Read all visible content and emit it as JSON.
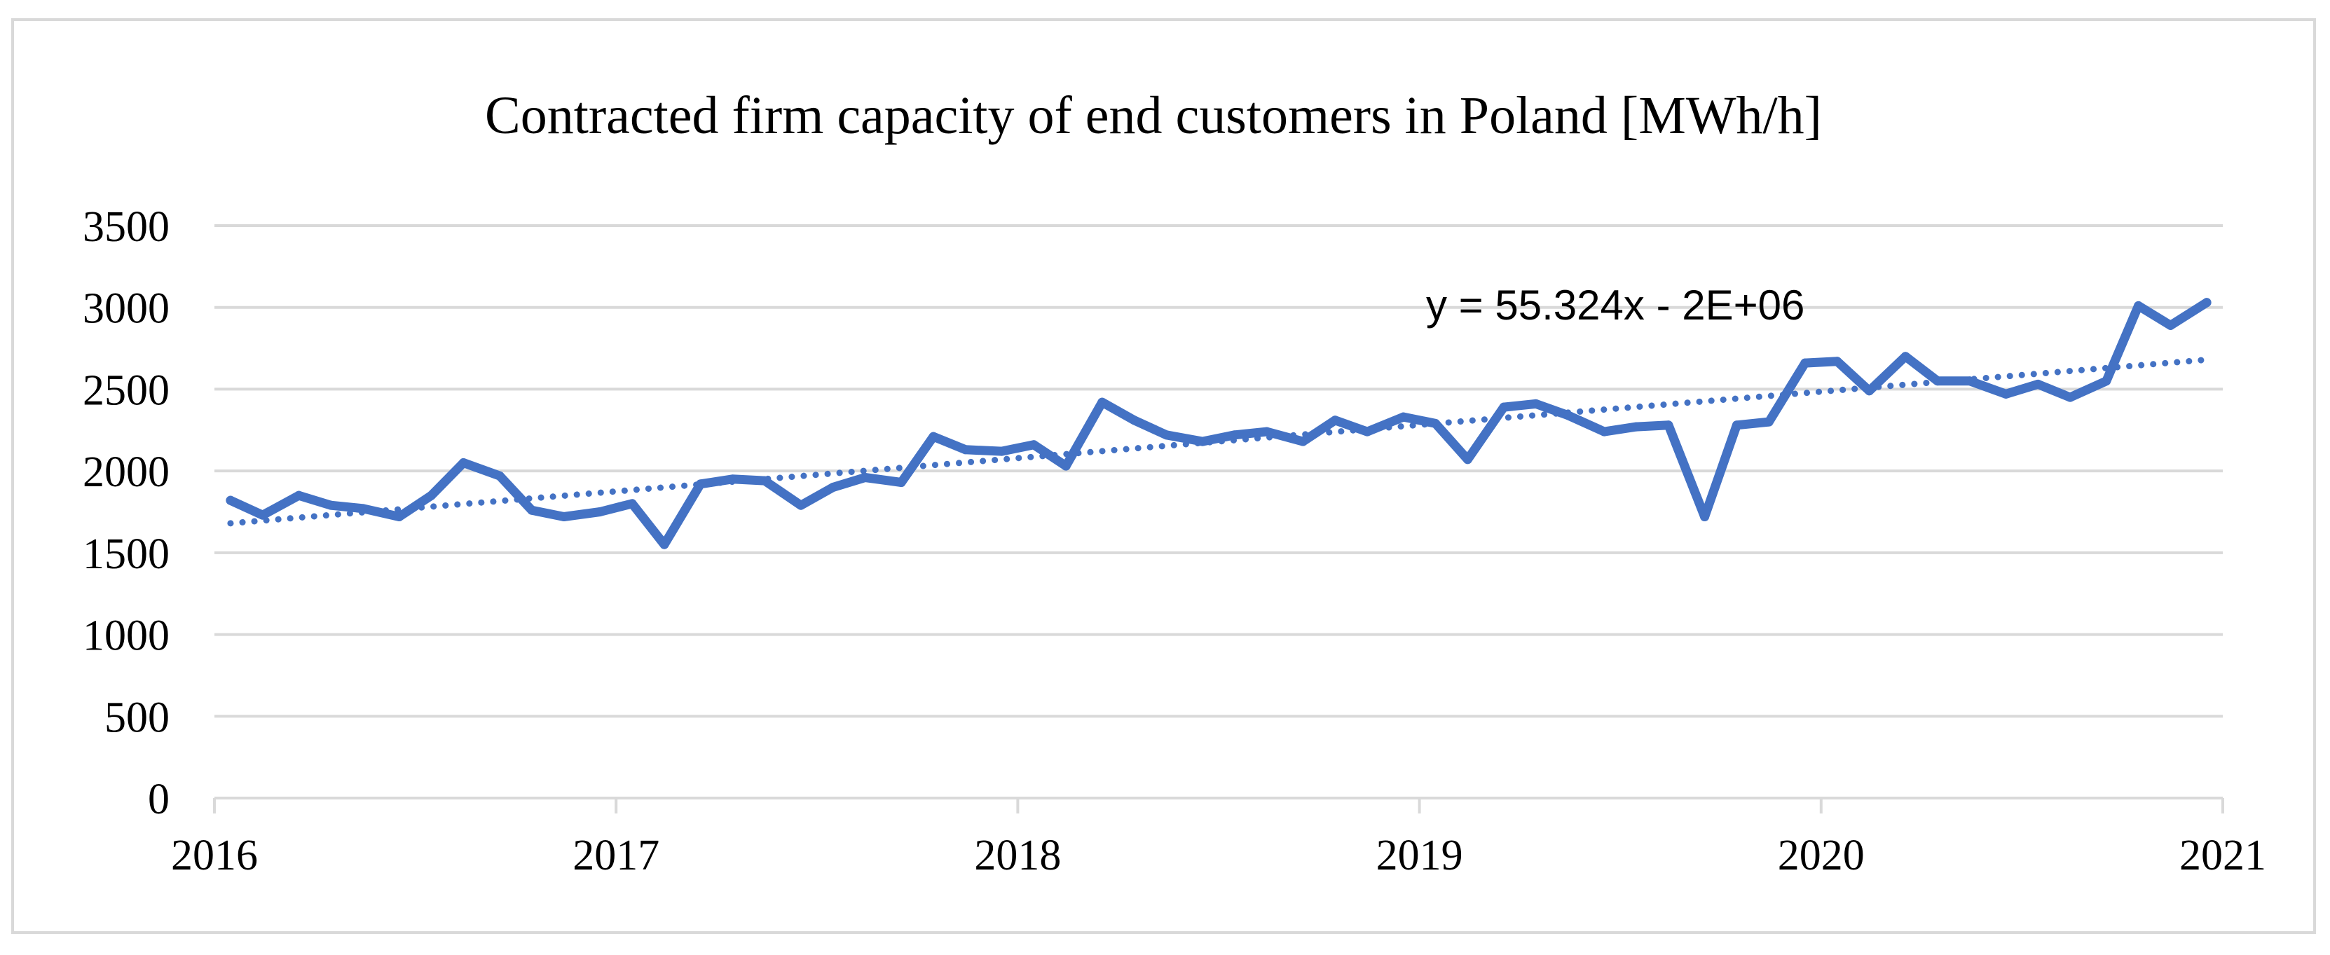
{
  "chart_data": {
    "type": "line",
    "title": "Contracted firm capacity of end customers in Poland [MWh/h]",
    "xlabel": "",
    "ylabel": "",
    "xlim": [
      2016,
      2021
    ],
    "ylim": [
      0,
      3500
    ],
    "x_ticks": [
      "2016",
      "2017",
      "2018",
      "2019",
      "2020",
      "2021"
    ],
    "y_ticks": [
      "0",
      "500",
      "1000",
      "1500",
      "2000",
      "2500",
      "3000",
      "3500"
    ],
    "grid": true,
    "legend": "none",
    "trendline": {
      "type": "linear",
      "label": "y = 55.324x - 2E+06",
      "start_value": 1680,
      "end_value": 2680
    },
    "series": [
      {
        "name": "Contracted firm capacity",
        "color": "#4472c4",
        "x": [
          2016.04,
          2016.12,
          2016.21,
          2016.29,
          2016.37,
          2016.46,
          2016.54,
          2016.62,
          2016.71,
          2016.79,
          2016.87,
          2016.96,
          2017.04,
          2017.12,
          2017.21,
          2017.29,
          2017.37,
          2017.46,
          2017.54,
          2017.62,
          2017.71,
          2017.79,
          2017.87,
          2017.96,
          2018.04,
          2018.12,
          2018.21,
          2018.29,
          2018.37,
          2018.46,
          2018.54,
          2018.62,
          2018.71,
          2018.79,
          2018.87,
          2018.96,
          2019.04,
          2019.12,
          2019.21,
          2019.29,
          2019.37,
          2019.46,
          2019.54,
          2019.62,
          2019.71,
          2019.79,
          2019.87,
          2019.96,
          2020.04,
          2020.12,
          2020.21,
          2020.29,
          2020.37,
          2020.46,
          2020.54,
          2020.62,
          2020.71,
          2020.79,
          2020.87,
          2020.96
        ],
        "values": [
          1820,
          1730,
          1850,
          1790,
          1770,
          1720,
          1850,
          2050,
          1970,
          1760,
          1720,
          1750,
          1800,
          1550,
          1920,
          1950,
          1940,
          1790,
          1900,
          1960,
          1930,
          2210,
          2130,
          2120,
          2160,
          2030,
          2420,
          2310,
          2220,
          2180,
          2220,
          2240,
          2180,
          2310,
          2240,
          2330,
          2290,
          2070,
          2390,
          2410,
          2340,
          2240,
          2270,
          2280,
          1720,
          2280,
          2300,
          2660,
          2670,
          2490,
          2700,
          2550,
          2550,
          2470,
          2530,
          2450,
          2550,
          3010,
          2890,
          3030
        ]
      }
    ]
  }
}
